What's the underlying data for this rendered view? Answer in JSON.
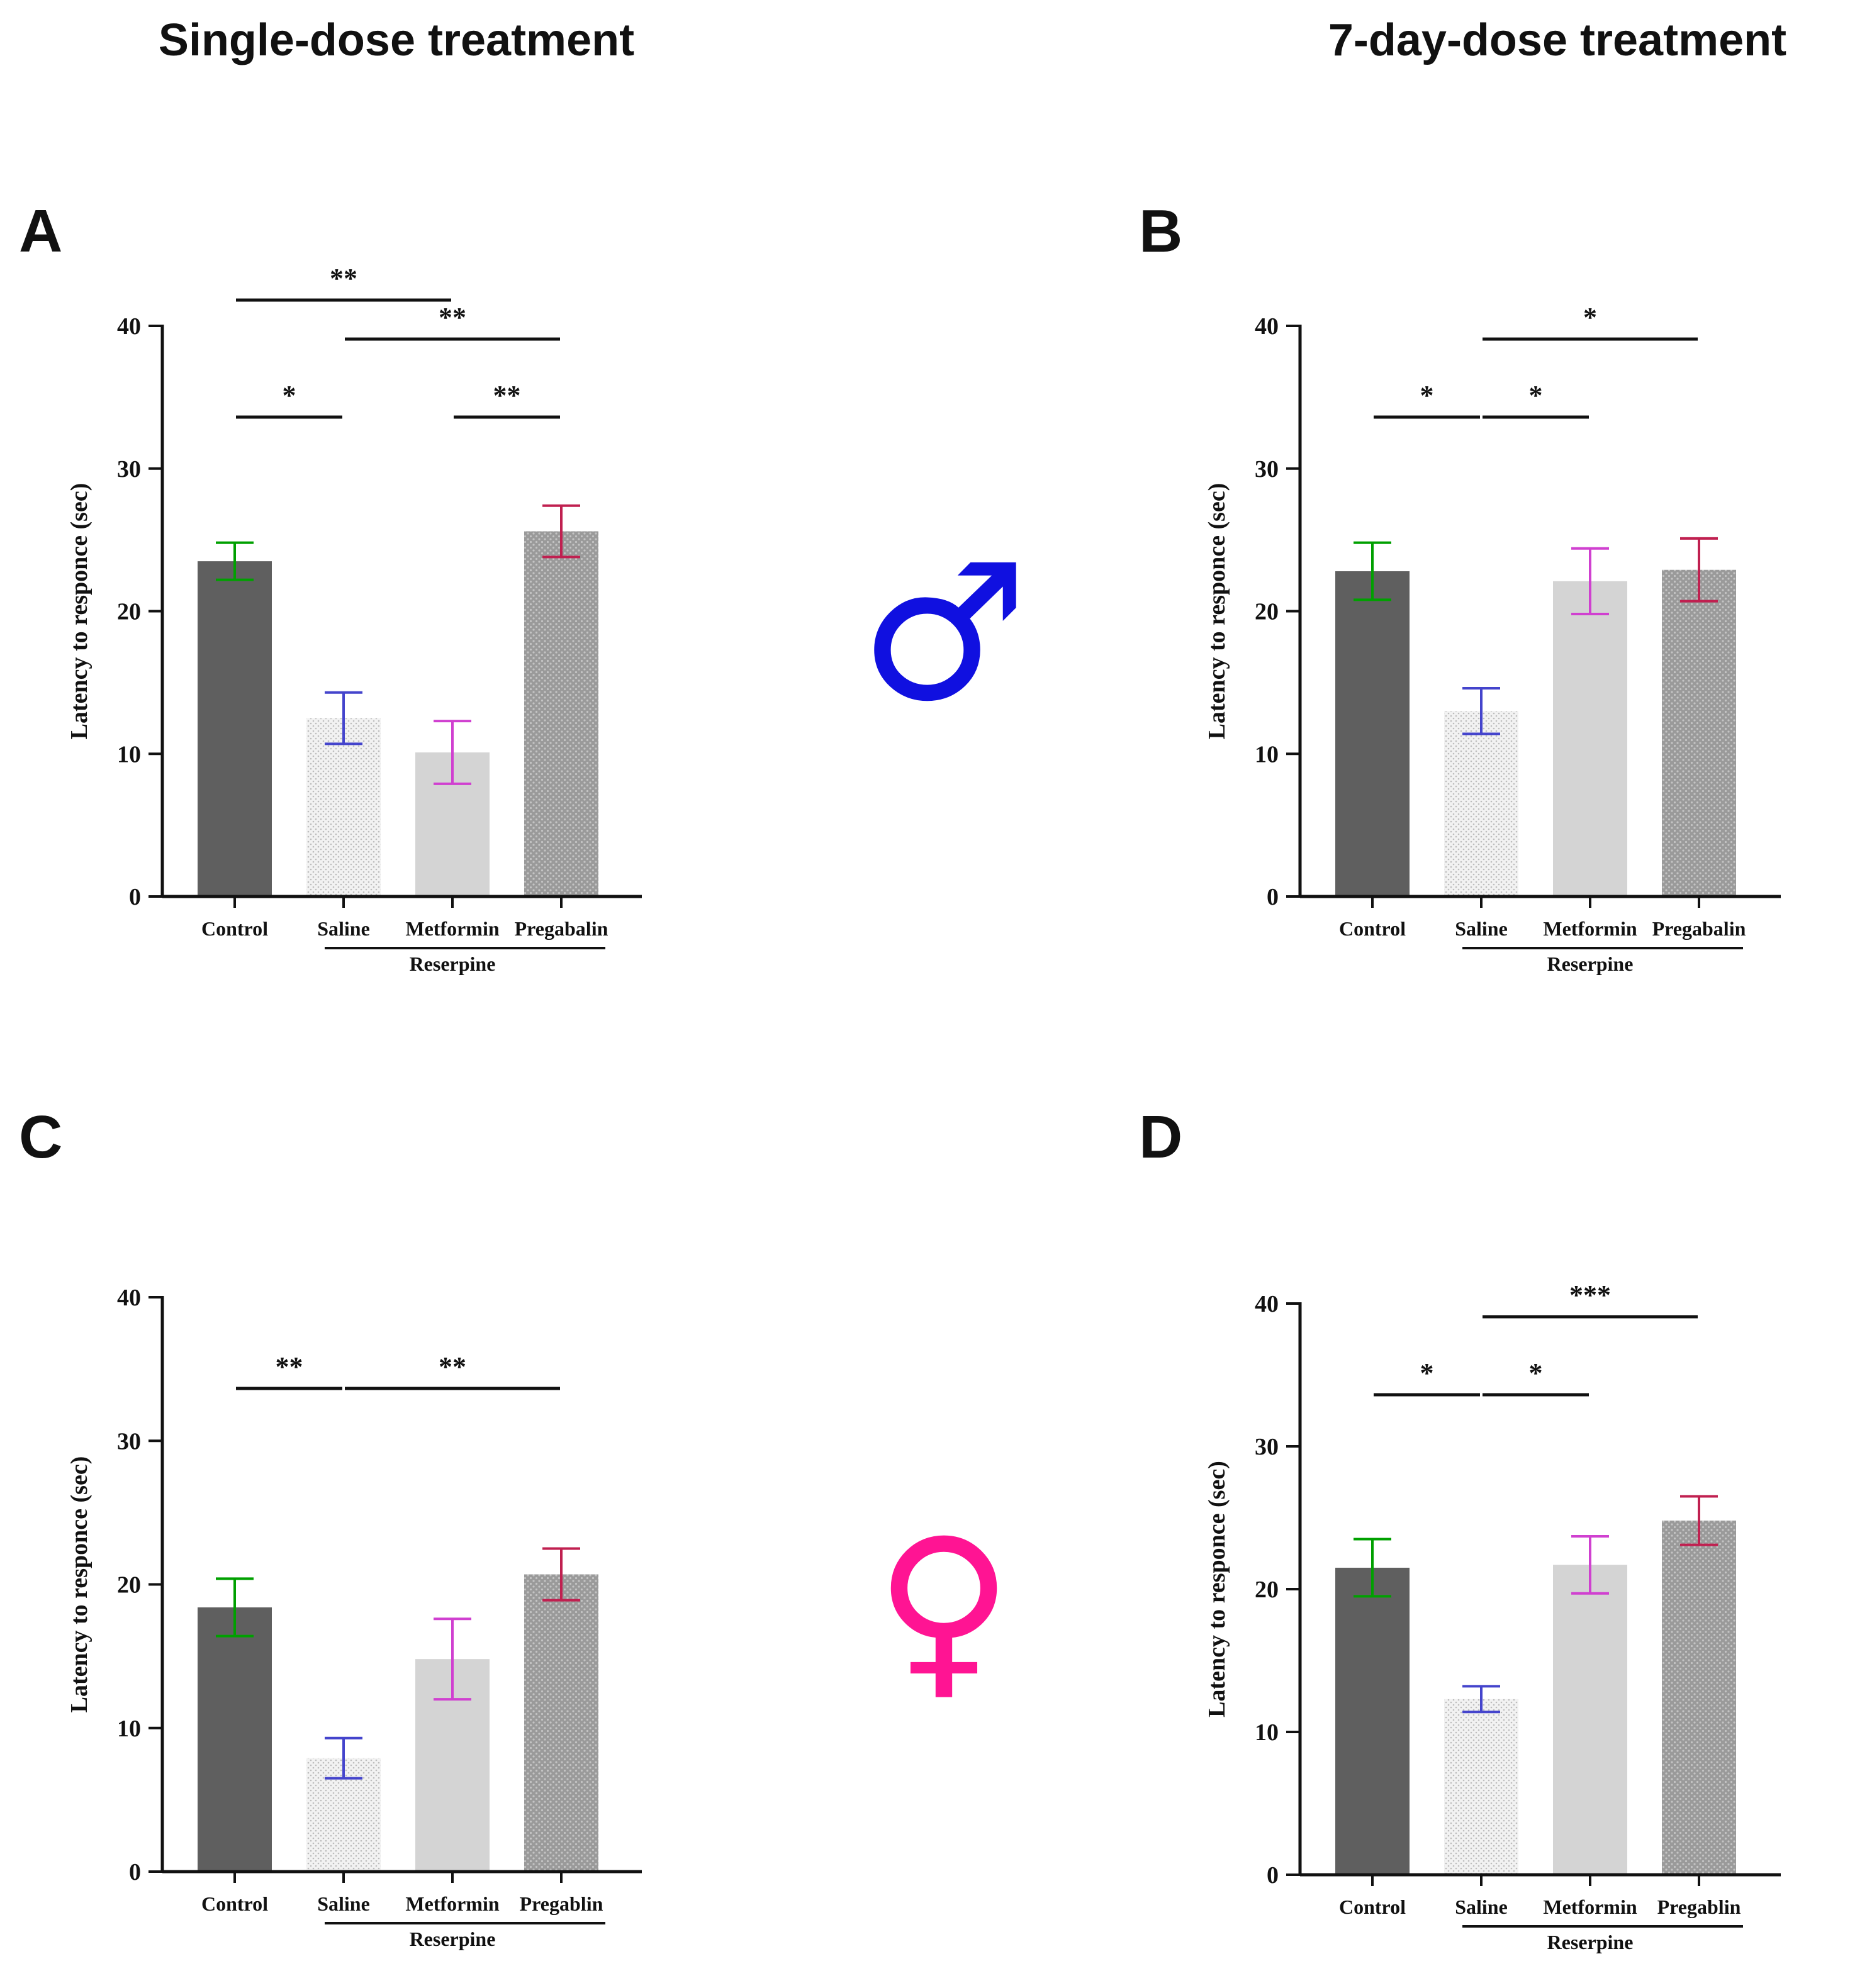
{
  "columns": [
    "Single-dose treatment",
    "7-day-dose treatment"
  ],
  "symbols": [
    {
      "glyph": "♂",
      "color": "#1010e0"
    },
    {
      "glyph": "♀",
      "color": "#ff1493"
    }
  ],
  "colors": {
    "bar_fill": [
      "#5f5f5f",
      "#f2f2f2",
      "#d4d4d4",
      "#9a9a9a"
    ],
    "error": [
      "#00a000",
      "#4444cc",
      "#d040d0",
      "#c02050"
    ]
  },
  "chart_data": [
    {
      "panel": "A",
      "type": "bar",
      "categories": [
        "Control",
        "Saline",
        "Metformin",
        "Pregabalin"
      ],
      "group_label": "Reserpine",
      "ylabel": "Latency to responce (sec)",
      "ylim": [
        0,
        40
      ],
      "yticks": [
        0,
        10,
        20,
        30,
        40
      ],
      "values": [
        23.5,
        12.5,
        10.1,
        25.6
      ],
      "errors": [
        1.3,
        1.8,
        2.2,
        1.8
      ],
      "significance": [
        {
          "from": 0,
          "to": 2,
          "label": "**",
          "level": 4
        },
        {
          "from": 1,
          "to": 3,
          "label": "**",
          "level": 3
        },
        {
          "from": 0,
          "to": 1,
          "label": "*",
          "level": 1
        },
        {
          "from": 2,
          "to": 3,
          "label": "**",
          "level": 1
        }
      ]
    },
    {
      "panel": "B",
      "type": "bar",
      "categories": [
        "Control",
        "Saline",
        "Metformin",
        "Pregabalin"
      ],
      "group_label": "Reserpine",
      "ylabel": "Latency to responce (sec)",
      "ylim": [
        0,
        40
      ],
      "yticks": [
        0,
        10,
        20,
        30,
        40
      ],
      "values": [
        22.8,
        13.0,
        22.1,
        22.9
      ],
      "errors": [
        2.0,
        1.6,
        2.3,
        2.2
      ],
      "significance": [
        {
          "from": 1,
          "to": 3,
          "label": "*",
          "level": 3
        },
        {
          "from": 0,
          "to": 1,
          "label": "*",
          "level": 1
        },
        {
          "from": 1,
          "to": 2,
          "label": "*",
          "level": 1
        }
      ]
    },
    {
      "panel": "C",
      "type": "bar",
      "categories": [
        "Control",
        "Saline",
        "Metformin",
        "Pregablin"
      ],
      "group_label": "Reserpine",
      "ylabel": "Latency to responce (sec)",
      "ylim": [
        0,
        40
      ],
      "yticks": [
        0,
        10,
        20,
        30,
        40
      ],
      "values": [
        18.4,
        7.9,
        14.8,
        20.7
      ],
      "errors": [
        2.0,
        1.4,
        2.8,
        1.8
      ],
      "significance": [
        {
          "from": 0,
          "to": 1,
          "label": "**",
          "level": 1
        },
        {
          "from": 1,
          "to": 3,
          "label": "**",
          "level": 1
        }
      ]
    },
    {
      "panel": "D",
      "type": "bar",
      "categories": [
        "Control",
        "Saline",
        "Metformin",
        "Pregablin"
      ],
      "group_label": "Reserpine",
      "ylabel": "Latency to responce (sec)",
      "ylim": [
        0,
        40
      ],
      "yticks": [
        0,
        10,
        20,
        30,
        40
      ],
      "values": [
        21.5,
        12.3,
        21.7,
        24.8
      ],
      "errors": [
        2.0,
        0.9,
        2.0,
        1.7
      ],
      "significance": [
        {
          "from": 1,
          "to": 3,
          "label": "***",
          "level": 3
        },
        {
          "from": 0,
          "to": 1,
          "label": "*",
          "level": 1
        },
        {
          "from": 1,
          "to": 2,
          "label": "*",
          "level": 1
        }
      ]
    }
  ]
}
